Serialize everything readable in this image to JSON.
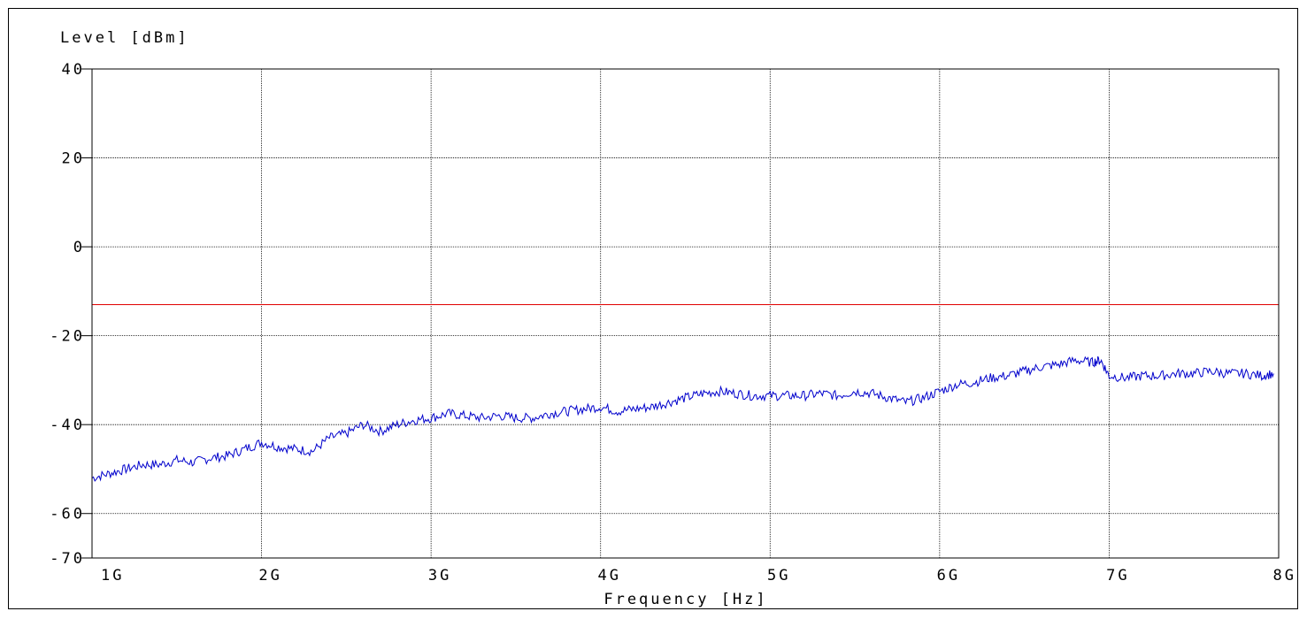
{
  "chart_data": {
    "type": "line",
    "ylabel": "Level  [dBm]",
    "xlabel": "Frequency  [Hz]",
    "x_range": [
      1,
      8
    ],
    "x_unit": "GHz",
    "ylim": [
      -70,
      40
    ],
    "grid": true,
    "x_ticks": [
      {
        "value": 1,
        "label": "1G"
      },
      {
        "value": 2,
        "label": "2G"
      },
      {
        "value": 3,
        "label": "3G"
      },
      {
        "value": 4,
        "label": "4G"
      },
      {
        "value": 5,
        "label": "5G"
      },
      {
        "value": 6,
        "label": "6G"
      },
      {
        "value": 7,
        "label": "7G"
      },
      {
        "value": 8,
        "label": "8G"
      }
    ],
    "y_ticks": [
      {
        "value": 40,
        "label": "40"
      },
      {
        "value": 20,
        "label": "20"
      },
      {
        "value": 0,
        "label": "0"
      },
      {
        "value": -20,
        "label": "-20"
      },
      {
        "value": -40,
        "label": "-40"
      },
      {
        "value": -60,
        "label": "-60"
      },
      {
        "value": -70,
        "label": "-70"
      }
    ],
    "limit_line": {
      "value": -13,
      "color": "#e00000"
    },
    "series": [
      {
        "color": "#0000cc",
        "x": [
          1.0,
          1.1,
          1.2,
          1.3,
          1.4,
          1.5,
          1.6,
          1.7,
          1.8,
          1.9,
          2.0,
          2.1,
          2.2,
          2.3,
          2.4,
          2.5,
          2.6,
          2.7,
          2.8,
          2.9,
          3.0,
          3.1,
          3.2,
          3.3,
          3.4,
          3.5,
          3.6,
          3.7,
          3.8,
          3.9,
          4.0,
          4.1,
          4.2,
          4.3,
          4.4,
          4.5,
          4.6,
          4.7,
          4.8,
          4.9,
          5.0,
          5.1,
          5.2,
          5.3,
          5.4,
          5.5,
          5.6,
          5.7,
          5.8,
          5.9,
          6.0,
          6.1,
          6.2,
          6.3,
          6.4,
          6.5,
          6.6,
          6.7,
          6.8,
          6.9,
          6.95,
          7.0,
          7.1,
          7.2,
          7.3,
          7.4,
          7.5,
          7.6,
          7.7,
          7.8,
          7.9,
          7.97
        ],
        "y": [
          -52,
          -51,
          -50,
          -49,
          -49,
          -48,
          -48.5,
          -47.5,
          -47,
          -45.5,
          -44,
          -45,
          -45.5,
          -46,
          -43,
          -42,
          -40,
          -41.5,
          -40,
          -39,
          -38.5,
          -37.5,
          -38,
          -38.5,
          -38,
          -38.5,
          -38.5,
          -37.5,
          -37,
          -36.5,
          -36,
          -37,
          -36.5,
          -36,
          -35,
          -34,
          -33,
          -32.5,
          -33,
          -33.5,
          -33.5,
          -33.5,
          -33.5,
          -33,
          -33.5,
          -32.5,
          -33,
          -34,
          -35,
          -34,
          -32.5,
          -31,
          -30.5,
          -29.5,
          -29,
          -28,
          -27,
          -26.5,
          -25.5,
          -26,
          -25.5,
          -29,
          -29.5,
          -29,
          -29,
          -28.5,
          -28.5,
          -28,
          -28.5,
          -28.5,
          -29,
          -28.5
        ]
      }
    ]
  }
}
